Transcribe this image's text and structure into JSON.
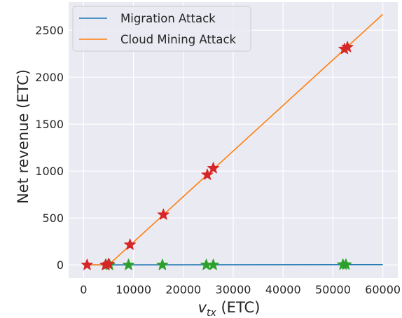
{
  "chart_data": {
    "type": "line",
    "xlabel": "v",
    "xlabel_sub": "tx",
    "xlabel_unit": " (ETC)",
    "ylabel": "Net revenue (ETC)",
    "xlim": [
      -3000,
      63000
    ],
    "ylim": [
      -140,
      2800
    ],
    "x_ticks": [
      0,
      10000,
      20000,
      30000,
      40000,
      50000,
      60000
    ],
    "y_ticks": [
      0,
      500,
      1000,
      1500,
      2000,
      2500
    ],
    "grid": true,
    "background_color": "#eaeaf2",
    "legend_position": "top-left",
    "series": [
      {
        "name": "Migration Attack",
        "color": "#1f77b4",
        "x": [
          0,
          60000
        ],
        "y": [
          0,
          3
        ]
      },
      {
        "name": "Cloud Mining Attack",
        "color": "#ff7f0e",
        "x": [
          0,
          5000,
          60000
        ],
        "y": [
          0,
          0,
          2670
        ]
      }
    ],
    "markers": [
      {
        "series": "Migration Attack",
        "color": "#2ca02c",
        "symbol": "star",
        "x": [
          4500,
          5200,
          9000,
          15800,
          24600,
          26000,
          52000,
          52600
        ],
        "y": [
          0,
          0,
          0,
          0,
          0,
          0,
          3,
          3
        ]
      },
      {
        "series": "Cloud Mining Attack",
        "color": "#d62728",
        "symbol": "star",
        "x": [
          700,
          4400,
          5000,
          9300,
          16000,
          24800,
          26000,
          52300,
          52900
        ],
        "y": [
          0,
          0,
          10,
          215,
          535,
          960,
          1030,
          2300,
          2320
        ]
      }
    ]
  }
}
